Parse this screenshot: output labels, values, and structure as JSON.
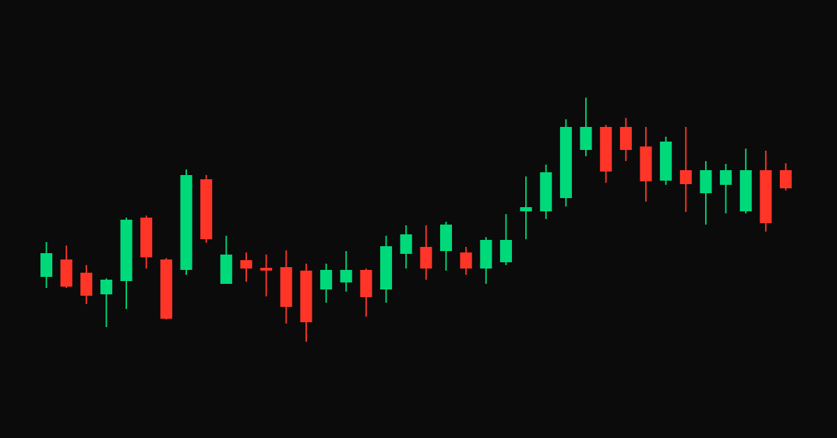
{
  "colors": {
    "background": "#0b0b0b",
    "up": "#00d97a",
    "down": "#ff3528"
  },
  "chart_data": {
    "type": "candlestick",
    "title": "",
    "xlabel": "",
    "ylabel": "",
    "axes_visible": false,
    "grid": false,
    "legend": "none",
    "ylim": [
      0,
      628
    ],
    "candles": [
      {
        "open": 231,
        "close": 265,
        "high": 281,
        "low": 215,
        "dir": "up"
      },
      {
        "open": 256,
        "close": 217,
        "high": 276,
        "low": 215,
        "dir": "down"
      },
      {
        "open": 237,
        "close": 204,
        "high": 248,
        "low": 192,
        "dir": "down"
      },
      {
        "open": 206,
        "close": 227,
        "high": 229,
        "low": 159,
        "dir": "up"
      },
      {
        "open": 225,
        "close": 313,
        "high": 316,
        "low": 185,
        "dir": "up"
      },
      {
        "open": 316,
        "close": 259,
        "high": 319,
        "low": 243,
        "dir": "down"
      },
      {
        "open": 256,
        "close": 171,
        "high": 258,
        "low": 170,
        "dir": "down"
      },
      {
        "open": 241,
        "close": 377,
        "high": 385,
        "low": 234,
        "dir": "up"
      },
      {
        "open": 371,
        "close": 285,
        "high": 377,
        "low": 280,
        "dir": "down"
      },
      {
        "open": 221,
        "close": 263,
        "high": 290,
        "low": 221,
        "dir": "up"
      },
      {
        "open": 255,
        "close": 243,
        "high": 266,
        "low": 224,
        "dir": "down"
      },
      {
        "open": 244,
        "close": 241,
        "high": 263,
        "low": 203,
        "dir": "down"
      },
      {
        "open": 245,
        "close": 188,
        "high": 269,
        "low": 164,
        "dir": "down"
      },
      {
        "open": 240,
        "close": 166,
        "high": 250,
        "low": 138,
        "dir": "down"
      },
      {
        "open": 213,
        "close": 241,
        "high": 250,
        "low": 194,
        "dir": "up"
      },
      {
        "open": 223,
        "close": 241,
        "high": 268,
        "low": 210,
        "dir": "up"
      },
      {
        "open": 241,
        "close": 202,
        "high": 243,
        "low": 174,
        "dir": "down"
      },
      {
        "open": 213,
        "close": 275,
        "high": 290,
        "low": 194,
        "dir": "up"
      },
      {
        "open": 264,
        "close": 292,
        "high": 305,
        "low": 243,
        "dir": "up"
      },
      {
        "open": 274,
        "close": 243,
        "high": 305,
        "low": 227,
        "dir": "down"
      },
      {
        "open": 268,
        "close": 306,
        "high": 310,
        "low": 240,
        "dir": "up"
      },
      {
        "open": 266,
        "close": 243,
        "high": 274,
        "low": 234,
        "dir": "down"
      },
      {
        "open": 243,
        "close": 284,
        "high": 288,
        "low": 221,
        "dir": "up"
      },
      {
        "open": 252,
        "close": 284,
        "high": 321,
        "low": 248,
        "dir": "up"
      },
      {
        "open": 325,
        "close": 331,
        "high": 375,
        "low": 285,
        "dir": "up"
      },
      {
        "open": 325,
        "close": 381,
        "high": 392,
        "low": 314,
        "dir": "up"
      },
      {
        "open": 344,
        "close": 446,
        "high": 457,
        "low": 332,
        "dir": "up"
      },
      {
        "open": 413,
        "close": 446,
        "high": 488,
        "low": 404,
        "dir": "up"
      },
      {
        "open": 446,
        "close": 382,
        "high": 449,
        "low": 366,
        "dir": "down"
      },
      {
        "open": 446,
        "close": 413,
        "high": 459,
        "low": 397,
        "dir": "down"
      },
      {
        "open": 418,
        "close": 368,
        "high": 446,
        "low": 339,
        "dir": "down"
      },
      {
        "open": 369,
        "close": 425,
        "high": 432,
        "low": 363,
        "dir": "up"
      },
      {
        "open": 384,
        "close": 364,
        "high": 446,
        "low": 324,
        "dir": "down"
      },
      {
        "open": 351,
        "close": 384,
        "high": 397,
        "low": 306,
        "dir": "up"
      },
      {
        "open": 363,
        "close": 384,
        "high": 393,
        "low": 322,
        "dir": "up"
      },
      {
        "open": 325,
        "close": 384,
        "high": 415,
        "low": 322,
        "dir": "up"
      },
      {
        "open": 384,
        "close": 308,
        "high": 412,
        "low": 296,
        "dir": "down"
      },
      {
        "open": 384,
        "close": 358,
        "high": 394,
        "low": 355,
        "dir": "down"
      }
    ]
  }
}
